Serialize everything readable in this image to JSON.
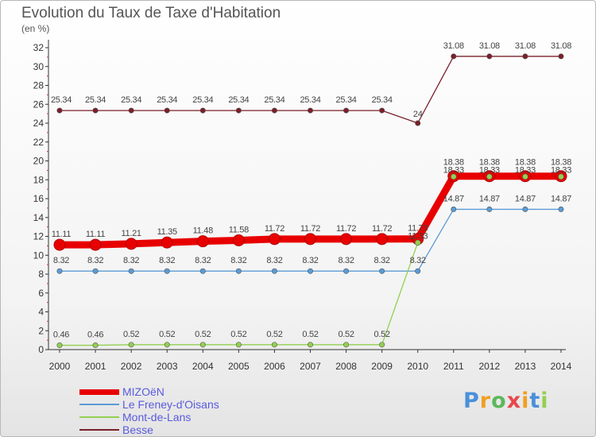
{
  "chart_data": {
    "type": "line",
    "title": "Evolution du Taux de Taxe d'Habitation",
    "unit": "(en %)",
    "x": [
      "2000",
      "2001",
      "2002",
      "2003",
      "2004",
      "2005",
      "2006",
      "2007",
      "2008",
      "2009",
      "2010",
      "2011",
      "2012",
      "2013",
      "2014"
    ],
    "ylim": [
      0,
      32
    ],
    "yticks": [
      0,
      2,
      4,
      6,
      8,
      10,
      12,
      14,
      16,
      18,
      20,
      22,
      24,
      26,
      28,
      30,
      32
    ],
    "grid": false,
    "legend_position": "bottom-left",
    "series": [
      {
        "name": "MIZOëN",
        "color": "#e80000",
        "values": [
          11.11,
          11.11,
          11.21,
          11.35,
          11.48,
          11.58,
          11.72,
          11.72,
          11.72,
          11.72,
          11.73,
          18.38,
          18.38,
          18.38,
          18.38
        ],
        "labels": [
          "11.11",
          "11.11",
          "11.21",
          "11.35",
          "11.48",
          "11.58",
          "11.72",
          "11.72",
          "11.72",
          "11.72",
          "11.73",
          "18.38",
          "18.38",
          "18.38",
          "18.38"
        ]
      },
      {
        "name": "Le Freney-d'Oisans",
        "color": "#5b9bd5",
        "values": [
          8.32,
          8.32,
          8.32,
          8.32,
          8.32,
          8.32,
          8.32,
          8.32,
          8.32,
          8.32,
          8.32,
          14.87,
          14.87,
          14.87,
          14.87
        ],
        "labels": [
          "8.32",
          "8.32",
          "8.32",
          "8.32",
          "8.32",
          "8.32",
          "8.32",
          "8.32",
          "8.32",
          "8.32",
          "8.32",
          "14.87",
          "14.87",
          "14.87",
          "14.87"
        ]
      },
      {
        "name": "Mont-de-Lans",
        "color": "#92d050",
        "values": [
          0.46,
          0.46,
          0.52,
          0.52,
          0.52,
          0.52,
          0.52,
          0.52,
          0.52,
          0.52,
          11.33,
          18.33,
          18.33,
          18.33,
          18.33
        ],
        "labels": [
          "0.46",
          "0.46",
          "0.52",
          "0.52",
          "0.52",
          "0.52",
          "0.52",
          "0.52",
          "0.52",
          "0.52",
          "11.33",
          "18.33",
          "18.33",
          "18.33",
          "18.33"
        ]
      },
      {
        "name": "Besse",
        "color": "#7b1f2a",
        "values": [
          25.34,
          25.34,
          25.34,
          25.34,
          25.34,
          25.34,
          25.34,
          25.34,
          25.34,
          25.34,
          24,
          31.08,
          31.08,
          31.08,
          31.08
        ],
        "labels": [
          "25.34",
          "25.34",
          "25.34",
          "25.34",
          "25.34",
          "25.34",
          "25.34",
          "25.34",
          "25.34",
          "25.34",
          "24",
          "31.08",
          "31.08",
          "31.08",
          "31.08"
        ]
      }
    ]
  },
  "logo": {
    "letters": [
      "P",
      "r",
      "o",
      "x",
      "i",
      "t",
      "i"
    ],
    "colors": [
      "#4a90d9",
      "#f0a020",
      "#5cb85c",
      "#e8474c",
      "#f0a020",
      "#4a90d9",
      "#92d050"
    ]
  }
}
